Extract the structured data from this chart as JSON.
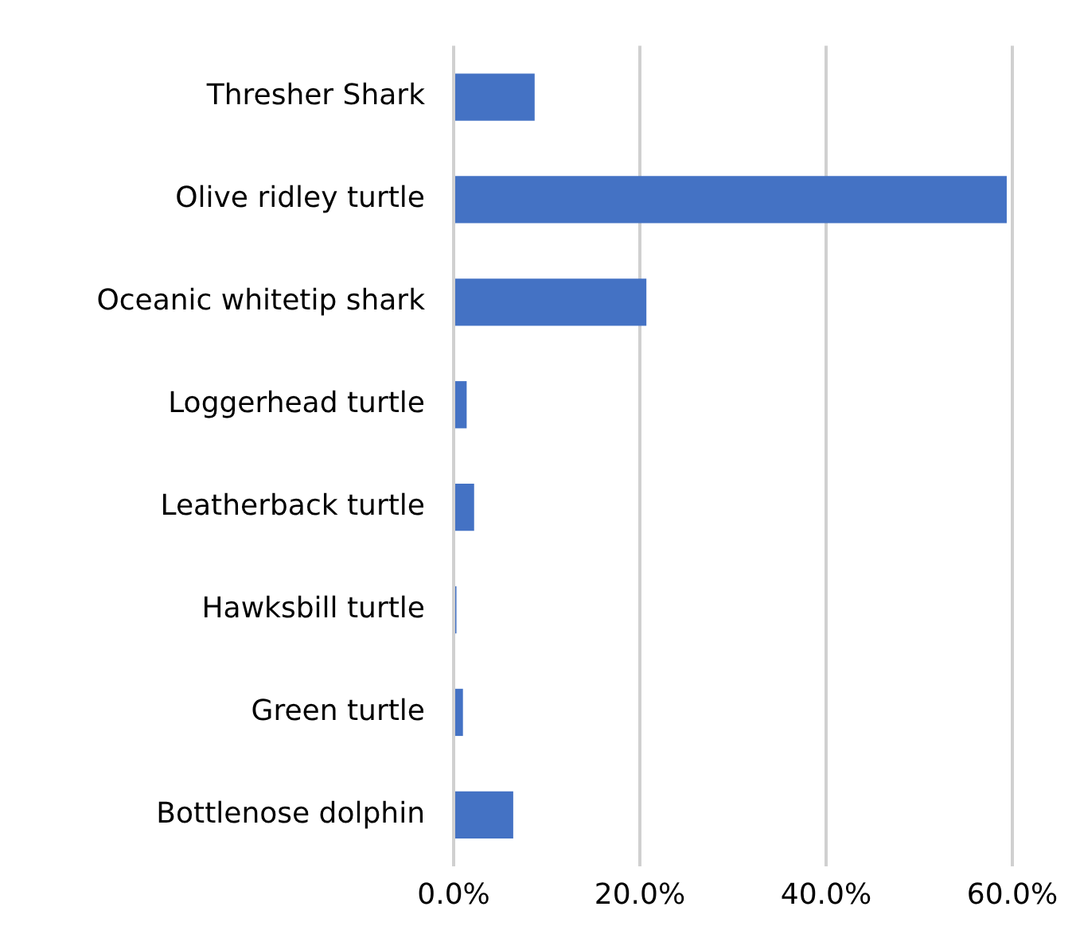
{
  "chart_data": {
    "type": "bar",
    "orientation": "horizontal",
    "categories": [
      "Thresher Shark",
      "Olive ridley turtle",
      "Oceanic whitetip shark",
      "Loggerhead turtle",
      "Leatherback turtle",
      "Hawksbill turtle",
      "Green turtle",
      "Bottlenose dolphin"
    ],
    "values": [
      8.7,
      59.4,
      20.7,
      1.4,
      2.2,
      0.3,
      1.0,
      6.4
    ],
    "color": "#4472c4",
    "xlim": [
      0,
      60
    ],
    "xticks": [
      {
        "value": 0,
        "label": "0.0%"
      },
      {
        "value": 20,
        "label": "20.0%"
      },
      {
        "value": 40,
        "label": "40.0%"
      },
      {
        "value": 60,
        "label": "60.0%"
      }
    ],
    "grid": "x"
  }
}
